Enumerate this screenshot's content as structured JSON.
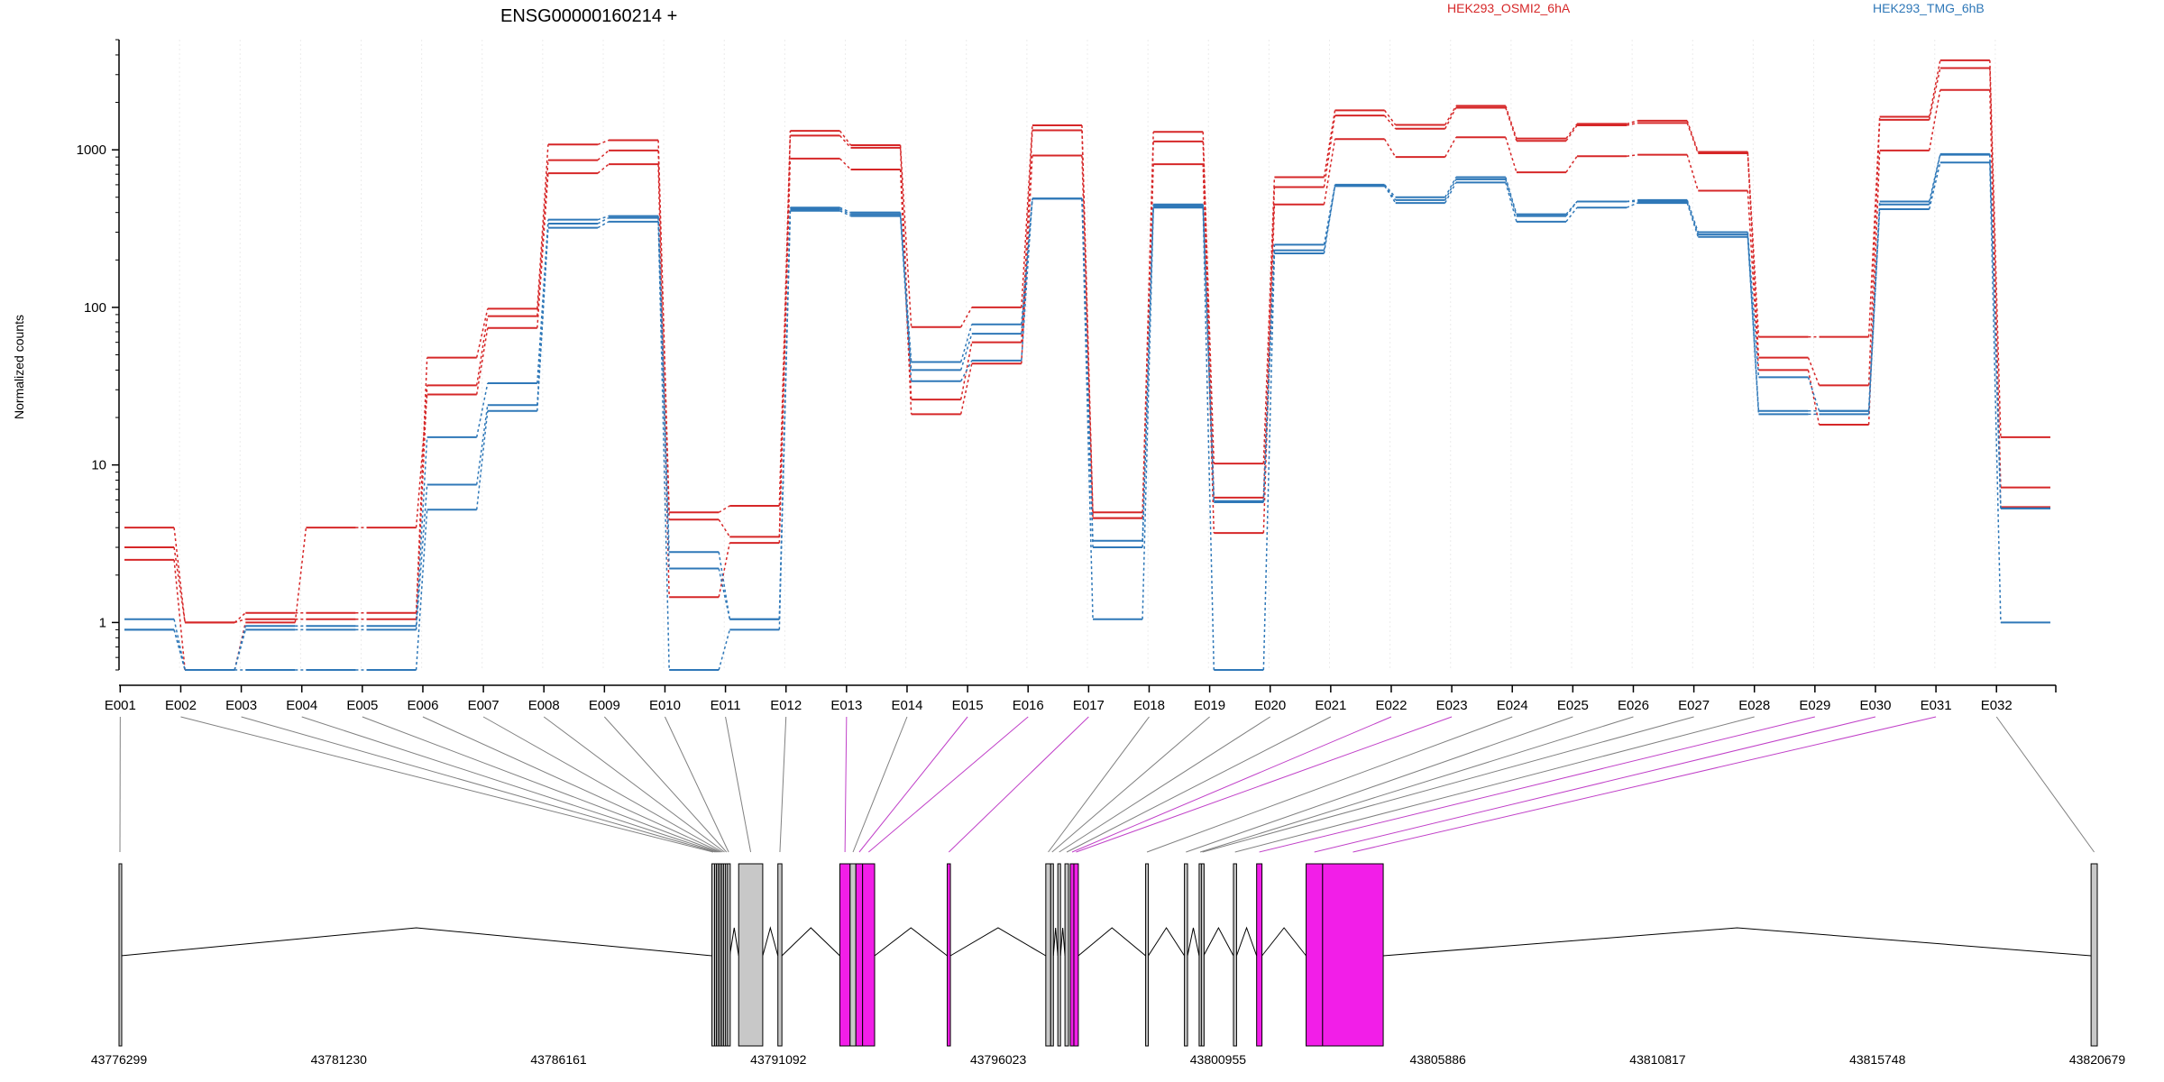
{
  "chart_data": {
    "type": "line",
    "title": "ENSG00000160214 +",
    "ylabel": "Normalized counts",
    "yscale": "log",
    "ylim": [
      0.5,
      5000
    ],
    "yticks": [
      {
        "value": 1,
        "label": "1"
      },
      {
        "value": 10,
        "label": "10"
      },
      {
        "value": 100,
        "label": "100"
      },
      {
        "value": 1000,
        "label": "1000"
      }
    ],
    "legend": {
      "placement": "top",
      "entries": [
        {
          "name": "HEK293_OSMI2_6hA",
          "color": "#d62728"
        },
        {
          "name": "HEK293_TMG_6hB",
          "color": "#2f78b8"
        }
      ]
    },
    "categories": [
      "E001",
      "E002",
      "E003",
      "E004",
      "E005",
      "E006",
      "E007",
      "E008",
      "E009",
      "E010",
      "E011",
      "E012",
      "E013",
      "E014",
      "E015",
      "E016",
      "E017",
      "E018",
      "E019",
      "E020",
      "E021",
      "E022",
      "E023",
      "E024",
      "E025",
      "E026",
      "E027",
      "E028",
      "E029",
      "E030",
      "E031",
      "E032"
    ],
    "series": [
      {
        "group": "HEK293_OSMI2_6hA",
        "color": "#d62728",
        "values": [
          4.0,
          1.0,
          1.15,
          1.15,
          1.15,
          48,
          98,
          1080,
          1150,
          5.0,
          5.5,
          1320,
          1070,
          75,
          100,
          1430,
          5.0,
          1300,
          10.2,
          670,
          1780,
          1440,
          1900,
          1180,
          1460,
          1530,
          970,
          65,
          65,
          1620,
          3700,
          15
        ]
      },
      {
        "group": "HEK293_OSMI2_6hA",
        "color": "#d62728",
        "values": [
          3.0,
          1.0,
          1.05,
          1.05,
          1.05,
          32,
          88,
          860,
          990,
          4.5,
          3.5,
          1230,
          1030,
          26,
          60,
          1330,
          4.6,
          1130,
          6.2,
          580,
          1650,
          1360,
          1850,
          1140,
          1430,
          1480,
          950,
          48,
          32,
          1550,
          3300,
          7.2
        ]
      },
      {
        "group": "HEK293_OSMI2_6hA",
        "color": "#d62728",
        "values": [
          2.5,
          0.5,
          1.0,
          4.0,
          4.0,
          28,
          74,
          710,
          810,
          1.45,
          3.2,
          880,
          750,
          21,
          44,
          920,
          4.6,
          810,
          3.7,
          450,
          1170,
          900,
          1200,
          720,
          910,
          930,
          550,
          40,
          18,
          990,
          2400,
          5.4
        ]
      },
      {
        "group": "HEK293_TMG_6hB",
        "color": "#2f78b8",
        "values": [
          1.05,
          0.5,
          0.95,
          0.95,
          0.95,
          15,
          33,
          360,
          380,
          2.8,
          1.05,
          430,
          400,
          45,
          78,
          490,
          3.3,
          450,
          5.9,
          250,
          600,
          500,
          670,
          390,
          470,
          480,
          300,
          36,
          22,
          470,
          940,
          5.3
        ]
      },
      {
        "group": "HEK293_TMG_6hB",
        "color": "#2f78b8",
        "values": [
          0.9,
          0.5,
          0.9,
          0.9,
          0.9,
          7.5,
          24,
          340,
          370,
          2.2,
          1.05,
          420,
          390,
          40,
          68,
          490,
          3.0,
          440,
          5.8,
          230,
          590,
          480,
          650,
          380,
          470,
          470,
          290,
          22,
          22,
          450,
          930,
          5.3
        ]
      },
      {
        "group": "HEK293_TMG_6hB",
        "color": "#2f78b8",
        "values": [
          0.9,
          0.5,
          0.5,
          0.5,
          0.5,
          5.2,
          22,
          320,
          350,
          0.5,
          0.9,
          410,
          380,
          34,
          46,
          490,
          1.05,
          430,
          0.5,
          220,
          590,
          460,
          620,
          350,
          430,
          460,
          280,
          21,
          21,
          420,
          830,
          1.0
        ]
      }
    ],
    "gene_model": {
      "coord_range": [
        43776299,
        43820679
      ],
      "coord_ticks": [
        43776299,
        43781230,
        43786161,
        43791092,
        43796023,
        43800955,
        43805886,
        43810817,
        43815748,
        43820679
      ],
      "exons": [
        {
          "id": "E001",
          "start": 43776299,
          "end": 43776340,
          "color": "#c8c8c8"
        },
        {
          "id": "E002",
          "start": 43789600,
          "end": 43789660,
          "color": "#c8c8c8"
        },
        {
          "id": "E003",
          "start": 43789660,
          "end": 43789700,
          "color": "#c8c8c8"
        },
        {
          "id": "E004",
          "start": 43789700,
          "end": 43789740,
          "color": "#c8c8c8"
        },
        {
          "id": "E005",
          "start": 43789740,
          "end": 43789780,
          "color": "#c8c8c8"
        },
        {
          "id": "E006",
          "start": 43789780,
          "end": 43789820,
          "color": "#c8c8c8"
        },
        {
          "id": "E007",
          "start": 43789820,
          "end": 43789860,
          "color": "#c8c8c8"
        },
        {
          "id": "E008",
          "start": 43789860,
          "end": 43789905,
          "color": "#c8c8c8"
        },
        {
          "id": "E009",
          "start": 43789905,
          "end": 43789950,
          "color": "#c8c8c8"
        },
        {
          "id": "E010",
          "start": 43789950,
          "end": 43790000,
          "color": "#c8c8c8"
        },
        {
          "id": "E011",
          "start": 43790200,
          "end": 43790740,
          "color": "#c8c8c8"
        },
        {
          "id": "E012",
          "start": 43791080,
          "end": 43791170,
          "color": "#c8c8c8"
        },
        {
          "id": "E013",
          "start": 43792470,
          "end": 43792700,
          "color": "#f21ee8"
        },
        {
          "id": "E014",
          "start": 43792700,
          "end": 43792830,
          "color": "#c8c8c8"
        },
        {
          "id": "E015",
          "start": 43792830,
          "end": 43792980,
          "color": "#f21ee8"
        },
        {
          "id": "E016",
          "start": 43792980,
          "end": 43793250,
          "color": "#f21ee8"
        },
        {
          "id": "E017",
          "start": 43794880,
          "end": 43794950,
          "color": "#f21ee8"
        },
        {
          "id": "E018",
          "start": 43797090,
          "end": 43797200,
          "color": "#c8c8c8"
        },
        {
          "id": "E019",
          "start": 43797200,
          "end": 43797260,
          "color": "#c8c8c8"
        },
        {
          "id": "E020",
          "start": 43797360,
          "end": 43797420,
          "color": "#c8c8c8"
        },
        {
          "id": "E021",
          "start": 43797520,
          "end": 43797600,
          "color": "#c8c8c8"
        },
        {
          "id": "E022",
          "start": 43797640,
          "end": 43797720,
          "color": "#f21ee8"
        },
        {
          "id": "E023",
          "start": 43797720,
          "end": 43797820,
          "color": "#f21ee8"
        },
        {
          "id": "E024",
          "start": 43799330,
          "end": 43799390,
          "color": "#c8c8c8"
        },
        {
          "id": "E025",
          "start": 43800200,
          "end": 43800270,
          "color": "#c8c8c8"
        },
        {
          "id": "E026",
          "start": 43800530,
          "end": 43800580,
          "color": "#c8c8c8"
        },
        {
          "id": "E027",
          "start": 43800580,
          "end": 43800630,
          "color": "#c8c8c8"
        },
        {
          "id": "E028",
          "start": 43801300,
          "end": 43801370,
          "color": "#c8c8c8"
        },
        {
          "id": "E029",
          "start": 43801820,
          "end": 43801940,
          "color": "#f21ee8"
        },
        {
          "id": "E030",
          "start": 43802930,
          "end": 43803300,
          "color": "#f21ee8"
        },
        {
          "id": "E031",
          "start": 43803300,
          "end": 43804660,
          "color": "#f21ee8"
        },
        {
          "id": "E032",
          "start": 43820540,
          "end": 43820679,
          "color": "#c8c8c8"
        }
      ]
    }
  }
}
